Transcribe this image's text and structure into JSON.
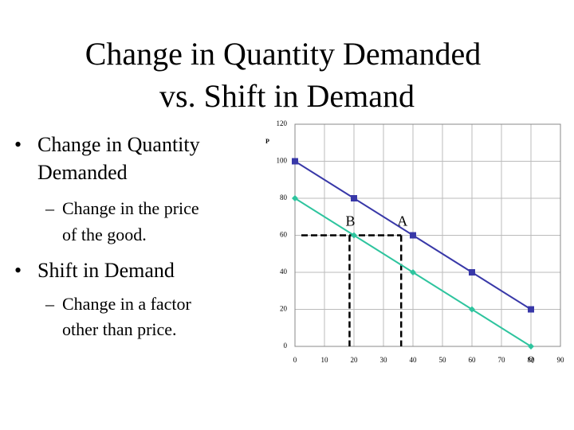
{
  "title": [
    "Change in Quantity Demanded",
    "vs. Shift in Demand"
  ],
  "bullets": [
    {
      "text": [
        "Change in Quantity",
        "Demanded"
      ],
      "sub": [
        [
          "Change in the price",
          "of the good."
        ]
      ]
    },
    {
      "text": [
        "Shift in Demand"
      ],
      "sub": [
        [
          "Change in a factor",
          "other than price."
        ]
      ]
    }
  ],
  "chart_data": {
    "type": "line",
    "xlabel": "Q",
    "ylabel": "P",
    "x": [
      0,
      20,
      40,
      60,
      80
    ],
    "series": [
      {
        "color": "#3838a8",
        "marker": "square",
        "values": [
          100,
          80,
          60,
          40,
          20
        ]
      },
      {
        "color": "#2ec49e",
        "marker": "diamond",
        "values": [
          80,
          60,
          40,
          20,
          0
        ]
      }
    ],
    "xlim": [
      0,
      90
    ],
    "xticks": [
      0,
      10,
      20,
      30,
      40,
      50,
      60,
      70,
      80,
      90
    ],
    "ylim": [
      0,
      120
    ],
    "yticks": [
      0,
      20,
      40,
      60,
      80,
      100,
      120
    ],
    "grid": true,
    "annotations": [
      {
        "text": "B",
        "x": 18.5,
        "y": 60
      },
      {
        "text": "A",
        "x": 36,
        "y": 60
      }
    ]
  }
}
